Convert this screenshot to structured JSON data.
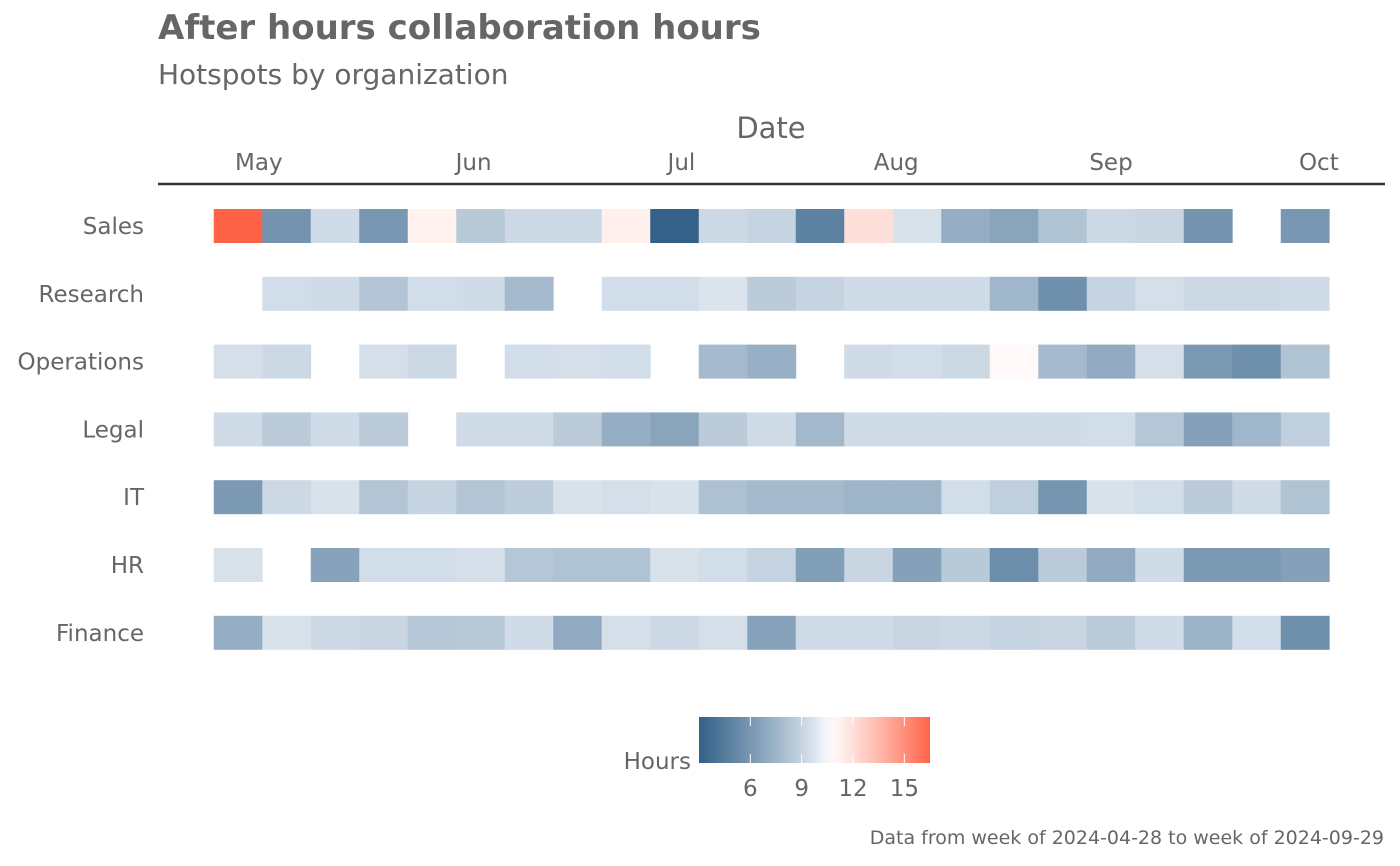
{
  "chart_data": {
    "type": "heatmap",
    "title": "After hours collaboration hours",
    "subtitle": "Hotspots by organization",
    "xlabel": "Date",
    "ylabel": "",
    "x_axis_position": "top",
    "caption": "Data from week of 2024-04-28 to week of 2024-09-29",
    "x": [
      "2024-04-28",
      "2024-05-05",
      "2024-05-12",
      "2024-05-19",
      "2024-05-26",
      "2024-06-02",
      "2024-06-09",
      "2024-06-16",
      "2024-06-23",
      "2024-06-30",
      "2024-07-07",
      "2024-07-14",
      "2024-07-21",
      "2024-07-28",
      "2024-08-04",
      "2024-08-11",
      "2024-08-18",
      "2024-08-25",
      "2024-09-01",
      "2024-09-08",
      "2024-09-15",
      "2024-09-22",
      "2024-09-29"
    ],
    "x_ticks": [
      {
        "label": "May",
        "date": "2024-05-01"
      },
      {
        "label": "Jun",
        "date": "2024-06-01"
      },
      {
        "label": "Jul",
        "date": "2024-07-01"
      },
      {
        "label": "Aug",
        "date": "2024-08-01"
      },
      {
        "label": "Sep",
        "date": "2024-09-01"
      },
      {
        "label": "Oct",
        "date": "2024-10-01"
      }
    ],
    "y": [
      "Sales",
      "Research",
      "Operations",
      "Legal",
      "IT",
      "HR",
      "Finance"
    ],
    "values": [
      [
        16.5,
        5.8,
        9.3,
        6.0,
        11.2,
        8.5,
        9.2,
        9.2,
        11.3,
        3.0,
        9.2,
        9.0,
        4.8,
        12.0,
        9.6,
        7.2,
        6.7,
        8.2,
        9.2,
        9.1,
        5.8,
        null,
        6.0
      ],
      [
        null,
        9.4,
        9.3,
        8.3,
        9.4,
        9.3,
        7.8,
        null,
        9.4,
        9.4,
        9.7,
        8.6,
        9.0,
        9.3,
        9.3,
        9.3,
        7.6,
        5.6,
        9.0,
        9.5,
        9.2,
        9.2,
        9.3
      ],
      [
        9.5,
        9.2,
        null,
        9.5,
        9.2,
        null,
        9.4,
        9.5,
        9.4,
        null,
        7.8,
        7.3,
        null,
        9.3,
        9.4,
        9.2,
        10.8,
        7.8,
        7.0,
        9.5,
        6.1,
        5.6,
        8.2
      ],
      [
        9.3,
        8.6,
        9.3,
        8.6,
        null,
        9.3,
        9.3,
        8.6,
        7.2,
        6.7,
        8.6,
        9.3,
        7.7,
        9.3,
        9.3,
        9.3,
        9.3,
        9.3,
        9.4,
        8.4,
        6.5,
        7.6,
        8.8
      ],
      [
        6.1,
        9.2,
        9.6,
        8.3,
        9.0,
        8.3,
        8.7,
        9.6,
        9.5,
        9.6,
        8.1,
        7.8,
        7.8,
        7.5,
        7.5,
        9.4,
        8.8,
        5.9,
        9.6,
        9.4,
        8.6,
        9.3,
        8.2
      ],
      [
        9.6,
        null,
        6.6,
        9.4,
        9.4,
        9.5,
        8.4,
        8.2,
        8.2,
        9.6,
        9.4,
        9.0,
        6.4,
        9.1,
        6.5,
        8.5,
        5.5,
        8.6,
        7.0,
        9.3,
        6.1,
        6.1,
        6.5
      ],
      [
        7.2,
        9.6,
        9.2,
        9.1,
        8.4,
        8.5,
        9.3,
        7.0,
        9.5,
        9.2,
        9.5,
        6.6,
        9.3,
        9.3,
        9.1,
        9.2,
        9.0,
        9.1,
        8.6,
        9.3,
        7.4,
        9.4,
        5.6
      ]
    ],
    "zlim": [
      3.0,
      16.5
    ],
    "legend": {
      "title": "Hours",
      "placement": "bottom",
      "breaks": [
        6,
        9,
        12,
        15
      ],
      "colors": {
        "low": "#336188",
        "mid": "#f8fbff",
        "high": "#ff6347"
      },
      "midpoint": 10.5
    },
    "grid": false
  }
}
